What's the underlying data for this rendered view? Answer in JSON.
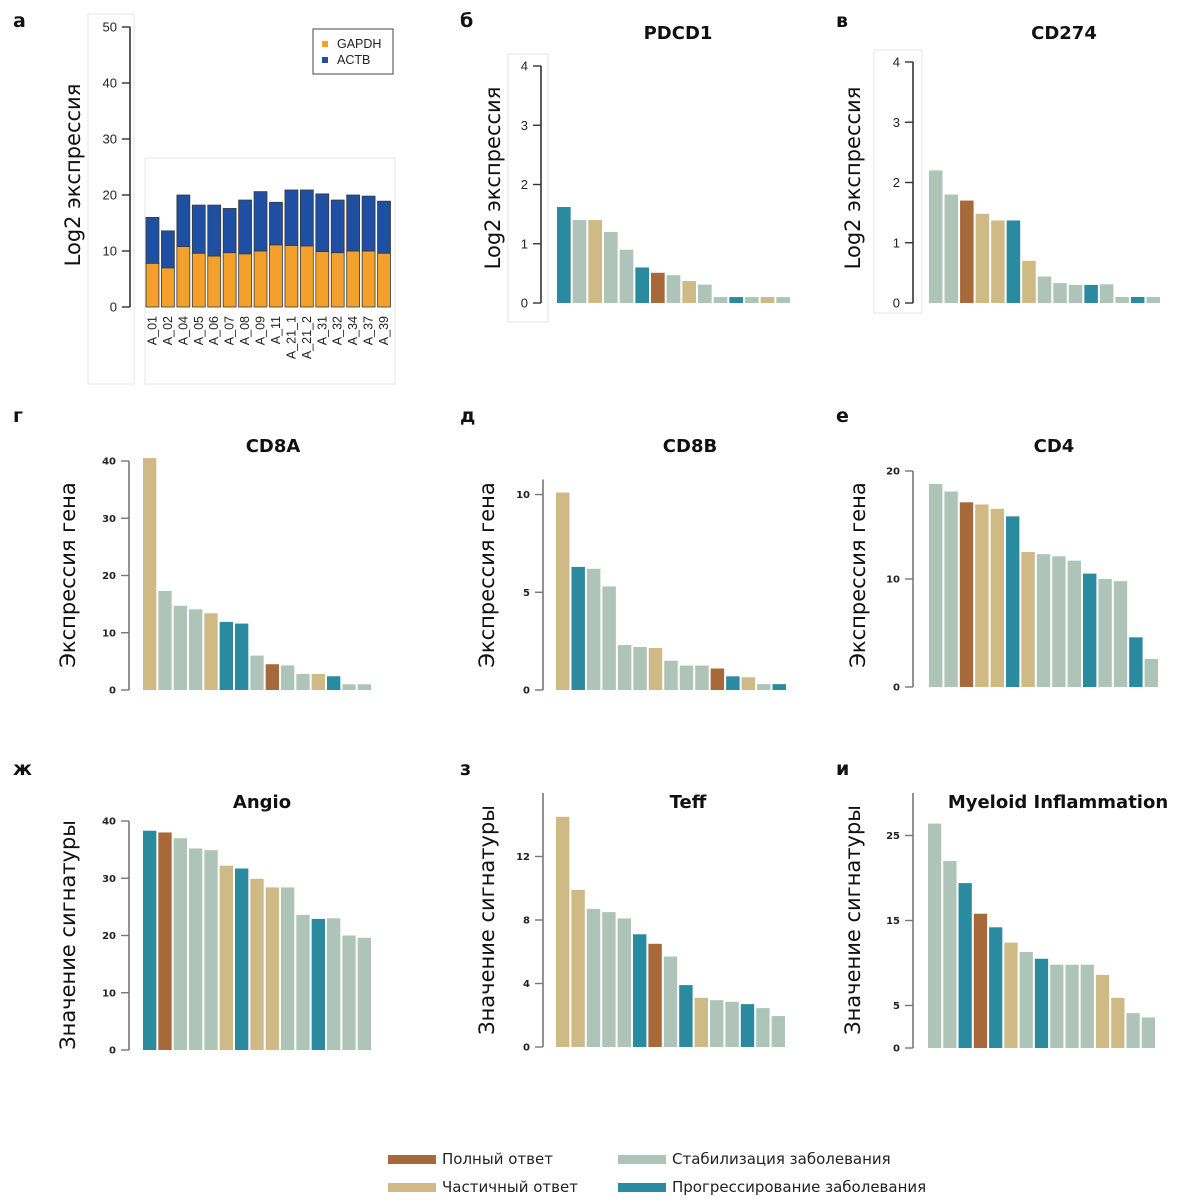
{
  "figure": {
    "legend": [
      {
        "key": "complete",
        "label": "Полный ответ",
        "color": "#a8693a"
      },
      {
        "key": "partial",
        "label": "Частичный ответ",
        "color": "#cfb985"
      },
      {
        "key": "stable",
        "label": "Стабилизация заболевания",
        "color": "#afc4b8"
      },
      {
        "key": "progression",
        "label": "Прогрессирование заболевания",
        "color": "#2a8aa0"
      }
    ]
  },
  "chart_data": [
    {
      "id": "a",
      "panel_letter": "а",
      "type": "bar",
      "stacked": true,
      "title": "",
      "ylabel": "Log2 экспрессия",
      "xlabel": "",
      "ylim": [
        0,
        50
      ],
      "yticks": [
        0,
        10,
        20,
        30,
        40,
        50
      ],
      "categories": [
        "A_01",
        "A_02",
        "A_04",
        "A_05",
        "A_06",
        "A_07",
        "A_08",
        "A_09",
        "A_11",
        "A_21_1",
        "A_21_2",
        "A_31",
        "A_32",
        "A_34",
        "A_37",
        "A_39"
      ],
      "series": [
        {
          "name": "GAPDH",
          "color": "#f4a02c",
          "values": [
            7.8,
            7.0,
            10.8,
            9.6,
            9.1,
            9.7,
            9.5,
            10.0,
            11.1,
            11.0,
            10.9,
            9.9,
            9.7,
            10.0,
            10.0,
            9.6
          ]
        },
        {
          "name": "ACTB",
          "color": "#1f4fa3",
          "values": [
            8.2,
            6.6,
            9.2,
            8.6,
            9.1,
            7.9,
            9.6,
            10.6,
            7.6,
            9.9,
            10.0,
            10.3,
            9.4,
            10.0,
            9.8,
            9.3
          ]
        }
      ],
      "legend_position": "top-right",
      "grid": false
    },
    {
      "id": "b",
      "panel_letter": "б",
      "type": "bar",
      "title": "PDCD1",
      "ylabel": "Log2 экспрессия",
      "xlabel": "",
      "ylim": [
        0,
        4
      ],
      "yticks": [
        0,
        1,
        2,
        3,
        4
      ],
      "values": [
        1.62,
        1.4,
        1.4,
        1.2,
        0.9,
        0.6,
        0.51,
        0.47,
        0.37,
        0.31,
        0.1,
        0.1,
        0.1,
        0.1,
        0.1
      ],
      "groups": [
        "progression",
        "stable",
        "partial",
        "stable",
        "stable",
        "progression",
        "complete",
        "stable",
        "partial",
        "stable",
        "stable",
        "progression",
        "stable",
        "partial",
        "stable"
      ],
      "grid": false
    },
    {
      "id": "c",
      "panel_letter": "в",
      "type": "bar",
      "title": "CD274",
      "ylabel": "Log2 экспрессия",
      "xlabel": "",
      "ylim": [
        0,
        4
      ],
      "yticks": [
        0,
        1,
        2,
        3,
        4
      ],
      "values": [
        2.2,
        1.8,
        1.7,
        1.48,
        1.37,
        1.37,
        0.7,
        0.44,
        0.33,
        0.3,
        0.3,
        0.31,
        0.1,
        0.1,
        0.1
      ],
      "groups": [
        "stable",
        "stable",
        "complete",
        "partial",
        "partial",
        "progression",
        "partial",
        "stable",
        "stable",
        "stable",
        "progression",
        "stable",
        "stable",
        "progression",
        "stable"
      ],
      "grid": false
    },
    {
      "id": "d",
      "panel_letter": "г",
      "type": "bar",
      "title": "CD8A",
      "ylabel": "Экспрессия гена",
      "xlabel": "",
      "ylim": [
        0,
        40
      ],
      "yticks": [
        0,
        10,
        20,
        30,
        40
      ],
      "values": [
        40.5,
        17.3,
        14.7,
        14.1,
        13.4,
        11.9,
        11.6,
        6.0,
        4.5,
        4.3,
        2.8,
        2.8,
        2.4,
        1.0,
        1.0
      ],
      "groups": [
        "partial",
        "stable",
        "stable",
        "stable",
        "partial",
        "progression",
        "progression",
        "stable",
        "complete",
        "stable",
        "stable",
        "partial",
        "progression",
        "stable",
        "stable"
      ],
      "grid": false
    },
    {
      "id": "e",
      "panel_letter": "д",
      "type": "bar",
      "title": "CD8B",
      "ylabel": "Экспрессия гена",
      "xlabel": "",
      "ylim": [
        0,
        11
      ],
      "yticks": [
        0,
        5,
        10
      ],
      "values": [
        10.1,
        6.3,
        6.2,
        5.3,
        2.3,
        2.2,
        2.15,
        1.5,
        1.25,
        1.25,
        1.1,
        0.7,
        0.65,
        0.3,
        0.3
      ],
      "groups": [
        "partial",
        "progression",
        "stable",
        "stable",
        "stable",
        "stable",
        "partial",
        "stable",
        "stable",
        "stable",
        "complete",
        "progression",
        "partial",
        "stable",
        "progression"
      ],
      "grid": false
    },
    {
      "id": "f",
      "panel_letter": "е",
      "type": "bar",
      "title": "CD4",
      "ylabel": "Экспрессия гена",
      "xlabel": "",
      "ylim": [
        0,
        20
      ],
      "yticks": [
        0,
        10,
        20
      ],
      "values": [
        18.8,
        18.1,
        17.1,
        16.9,
        16.5,
        15.8,
        12.5,
        12.3,
        12.1,
        11.7,
        10.5,
        10.0,
        9.8,
        4.6,
        2.6
      ],
      "groups": [
        "stable",
        "stable",
        "complete",
        "partial",
        "partial",
        "progression",
        "partial",
        "stable",
        "stable",
        "stable",
        "progression",
        "stable",
        "stable",
        "progression",
        "stable"
      ],
      "grid": false
    },
    {
      "id": "g",
      "panel_letter": "ж",
      "type": "bar",
      "title": "Angio",
      "ylabel": "Значение сигнатуры",
      "xlabel": "",
      "ylim": [
        0,
        40
      ],
      "yticks": [
        0,
        10,
        20,
        30,
        40
      ],
      "values": [
        38.3,
        38.0,
        37.0,
        35.2,
        34.9,
        32.2,
        31.7,
        29.9,
        28.4,
        28.4,
        23.6,
        22.9,
        23.0,
        20.0,
        19.6
      ],
      "groups": [
        "progression",
        "complete",
        "stable",
        "stable",
        "stable",
        "partial",
        "progression",
        "partial",
        "partial",
        "stable",
        "stable",
        "progression",
        "stable",
        "stable",
        "stable"
      ],
      "grid": false
    },
    {
      "id": "h",
      "panel_letter": "з",
      "type": "bar",
      "title": "Teff",
      "ylabel": "Значение сигнатуры",
      "xlabel": "",
      "ylim": [
        0,
        16
      ],
      "yticks": [
        0,
        4,
        8,
        12
      ],
      "values": [
        14.5,
        9.9,
        8.7,
        8.5,
        8.1,
        7.1,
        6.5,
        5.7,
        3.9,
        3.1,
        2.95,
        2.85,
        2.7,
        2.45,
        1.95
      ],
      "groups": [
        "partial",
        "partial",
        "stable",
        "stable",
        "stable",
        "progression",
        "complete",
        "stable",
        "progression",
        "partial",
        "stable",
        "stable",
        "progression",
        "stable",
        "stable"
      ],
      "grid": false
    },
    {
      "id": "i",
      "panel_letter": "и",
      "type": "bar",
      "title": "Myeloid Inflammation",
      "ylabel": "Значение сигнатуры",
      "xlabel": "",
      "ylim": [
        0,
        30
      ],
      "yticks": [
        0,
        5,
        15,
        25
      ],
      "values": [
        26.4,
        22.0,
        19.4,
        15.8,
        14.2,
        12.4,
        11.3,
        10.5,
        9.8,
        9.8,
        9.8,
        8.6,
        5.9,
        4.1,
        3.6
      ],
      "groups": [
        "stable",
        "stable",
        "progression",
        "complete",
        "progression",
        "partial",
        "stable",
        "progression",
        "stable",
        "stable",
        "stable",
        "partial",
        "partial",
        "stable",
        "stable"
      ],
      "grid": false
    }
  ]
}
